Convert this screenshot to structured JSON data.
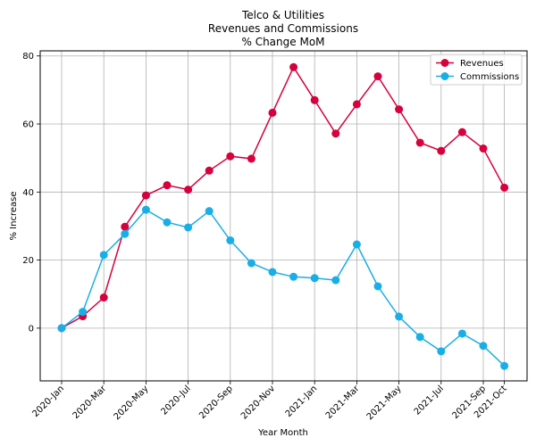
{
  "chart_data": {
    "type": "line",
    "title": [
      "Telco & Utilities",
      "Revenues and Commissions",
      "% Change MoM"
    ],
    "xlabel": "Year Month",
    "ylabel": "% Increase",
    "ylim": [
      -15.5,
      81.5
    ],
    "yticks": [
      0,
      20,
      40,
      60,
      80
    ],
    "grid": true,
    "legend_position": "top-right",
    "x": [
      "2020-Jan",
      "2020-Feb",
      "2020-Mar",
      "2020-Apr",
      "2020-May",
      "2020-Jun",
      "2020-Jul",
      "2020-Aug",
      "2020-Sep",
      "2020-Oct",
      "2020-Nov",
      "2020-Dec",
      "2021-Jan",
      "2021-Feb",
      "2021-Mar",
      "2021-Apr",
      "2021-May",
      "2021-Jun",
      "2021-Jul",
      "2021-Aug",
      "2021-Sep",
      "2021-Oct"
    ],
    "xtick_labels": [
      "2020-Jan",
      "2020-Mar",
      "2020-May",
      "2020-Jul",
      "2020-Sep",
      "2020-Nov",
      "2021-Jan",
      "2021-Mar",
      "2021-May",
      "2021-Jul",
      "2021-Sep",
      "2021-Oct"
    ],
    "xtick_indices": [
      0,
      2,
      4,
      6,
      8,
      10,
      12,
      14,
      16,
      18,
      20,
      21
    ],
    "series": [
      {
        "name": "Revenues",
        "color": "#d6003c",
        "values": [
          0,
          3.5,
          9,
          29.8,
          39,
          42,
          40.7,
          46.3,
          50.5,
          49.8,
          63.3,
          76.7,
          67,
          57.2,
          65.8,
          74,
          64.3,
          54.5,
          52.1,
          57.6,
          52.8,
          41.3
        ]
      },
      {
        "name": "Commissions",
        "color": "#1aaee6",
        "values": [
          0,
          4.8,
          21.5,
          27.7,
          34.8,
          31.1,
          29.6,
          34.4,
          25.8,
          19.1,
          16.5,
          15.1,
          14.7,
          14.1,
          24.6,
          12.3,
          3.4,
          -2.6,
          -6.8,
          -1.6,
          -5.2,
          -11.1
        ]
      }
    ]
  }
}
